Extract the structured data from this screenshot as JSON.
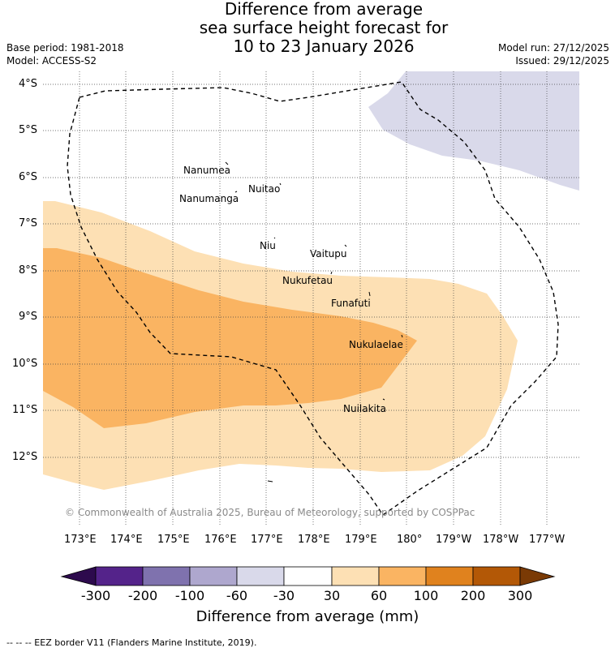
{
  "title": {
    "line1": "Difference from average",
    "line2": "sea surface height forecast for",
    "line3": "10 to 23 January 2026"
  },
  "meta": {
    "base_period": "Base period: 1981-2018",
    "model": "Model: ACCESS-S2",
    "model_run": "Model run: 27/12/2025",
    "issued": "Issued: 29/12/2025"
  },
  "lat_ticks": [
    "4°S",
    "5°S",
    "6°S",
    "7°S",
    "8°S",
    "9°S",
    "10°S",
    "11°S",
    "12°S"
  ],
  "lon_ticks": [
    "173°E",
    "174°E",
    "175°E",
    "176°E",
    "177°E",
    "178°E",
    "179°E",
    "180°",
    "179°W",
    "178°W",
    "177°W"
  ],
  "islands": [
    "Nanumea",
    "Nuitao",
    "Nanumanga",
    "Niu",
    "Vaitupu",
    "Nukufetau",
    "Funafuti",
    "Nukulaelae",
    "Nuilakita"
  ],
  "copyright": "© Commonwealth of Australia 2025, Bureau of Meteorology, supported by COSPPac",
  "colorbar": {
    "labels": [
      "-300",
      "-200",
      "-100",
      "-60",
      "-30",
      "30",
      "60",
      "100",
      "200",
      "300"
    ],
    "colors": [
      "#2d0a4d",
      "#54238a",
      "#7f72ae",
      "#aea7ce",
      "#d9d9ea",
      "#ffffff",
      "#fde0b4",
      "#fab462",
      "#e0821e",
      "#b35806",
      "#7a3a05"
    ],
    "title": "Difference from average (mm)"
  },
  "legend": "-- -- -- EEZ border V11 (Flanders Marine Institute, 2019)."
}
